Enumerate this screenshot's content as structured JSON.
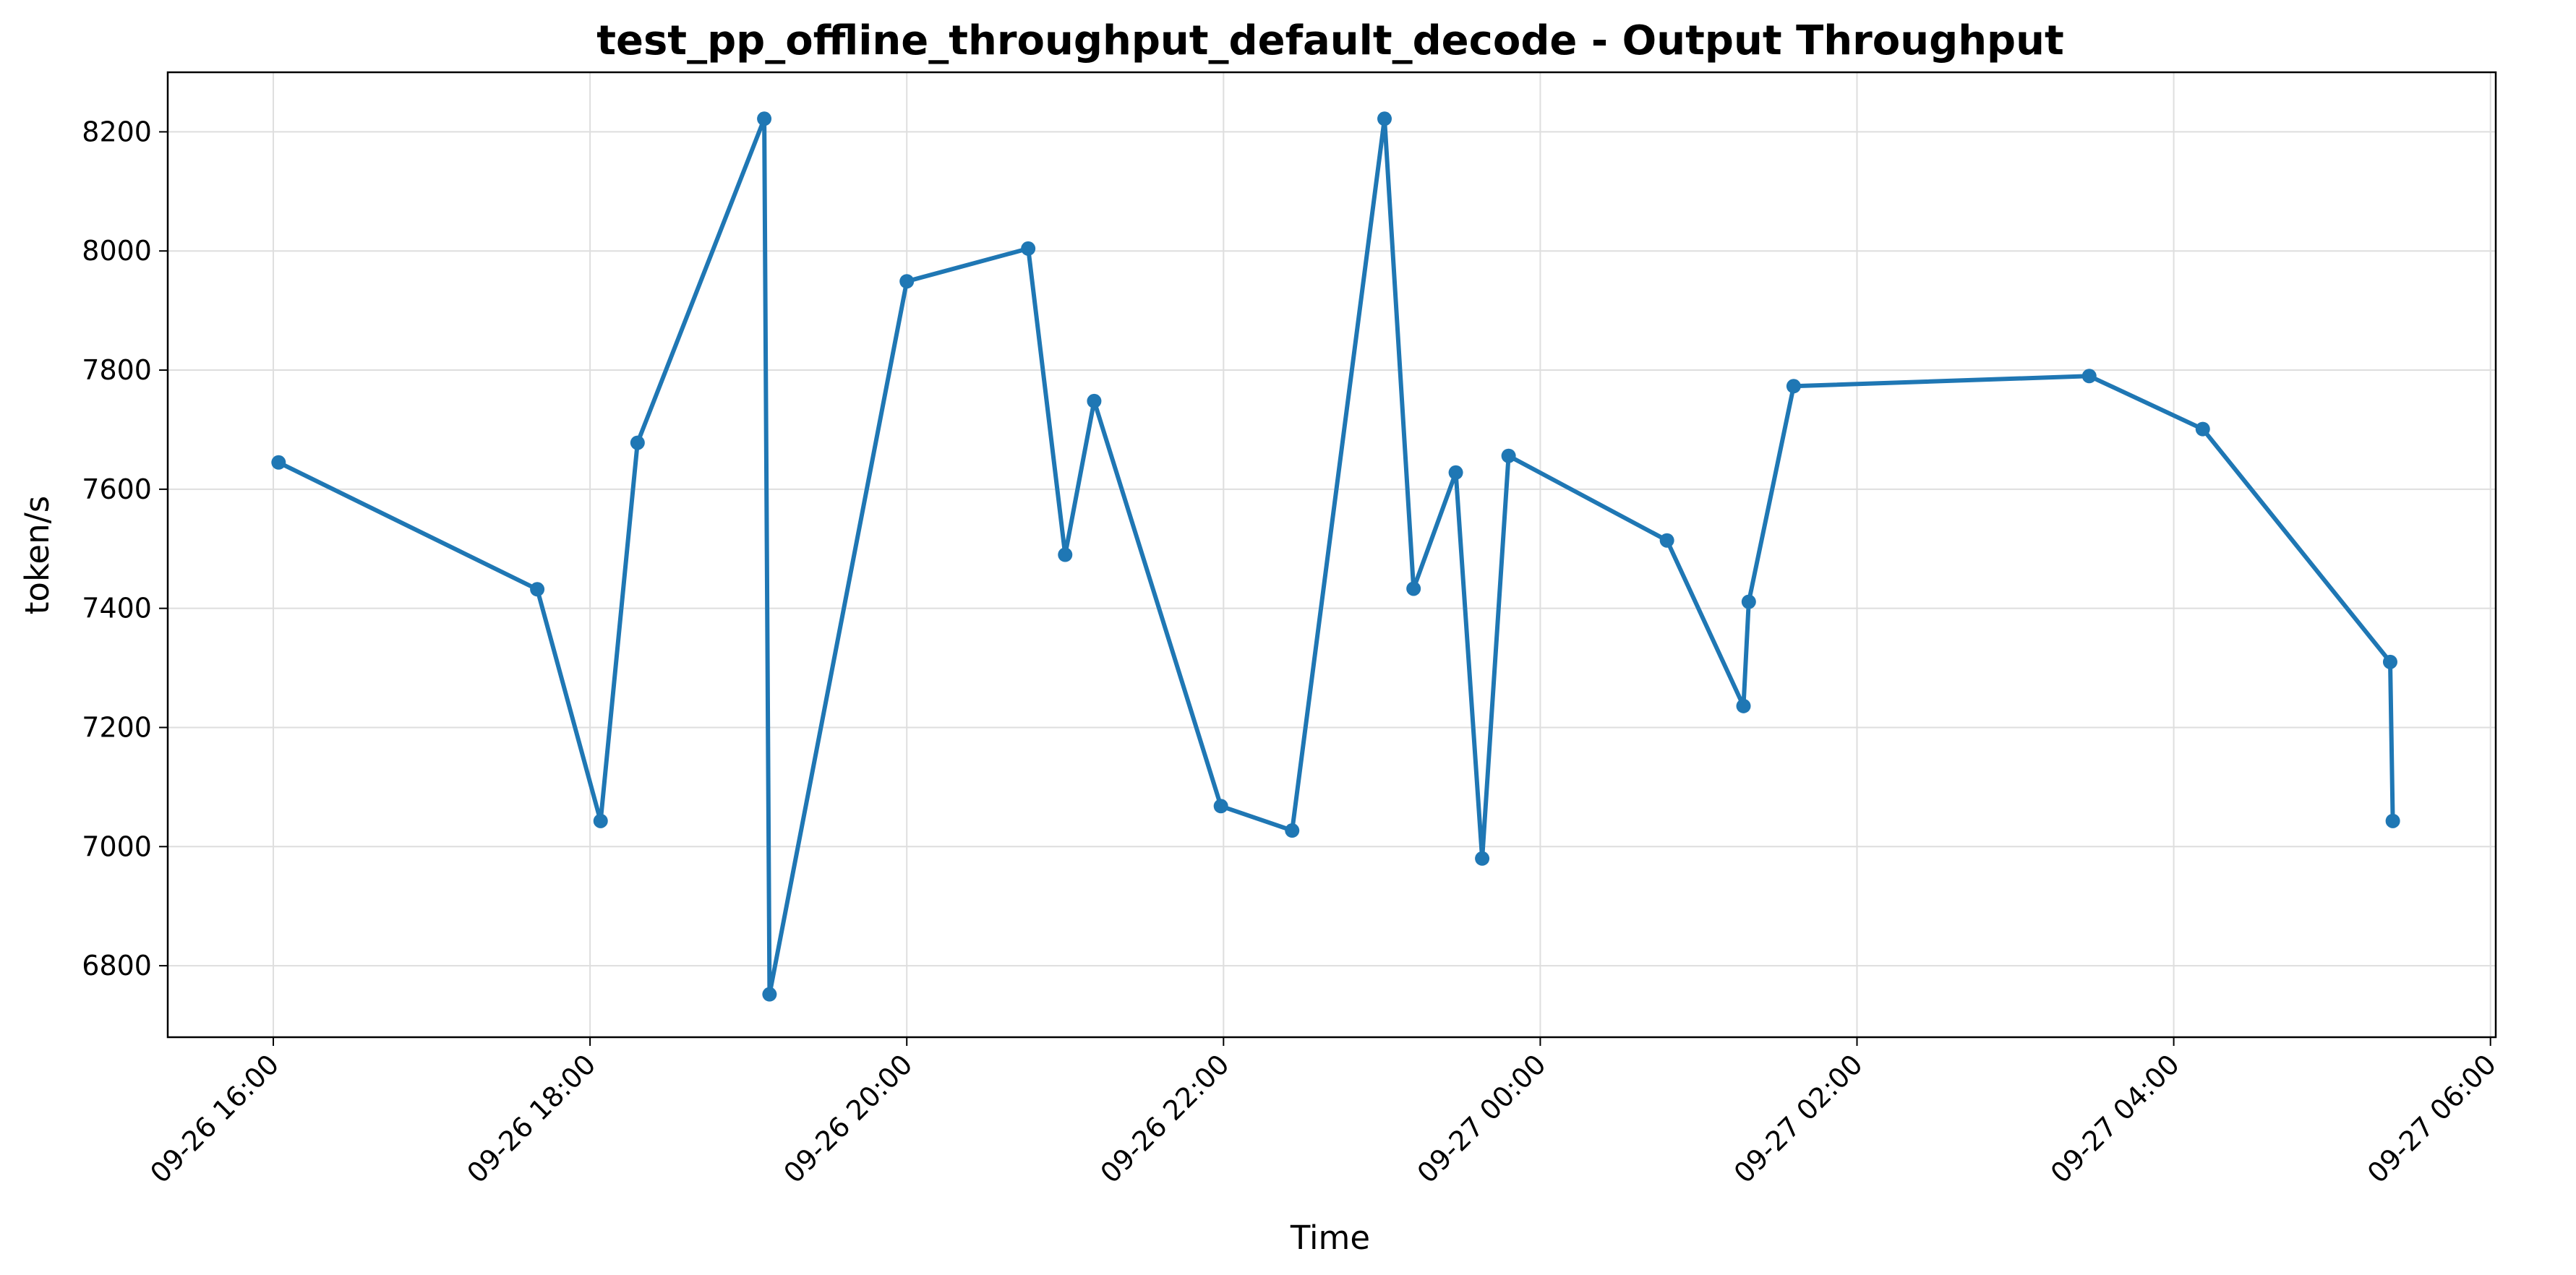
{
  "chart_data": {
    "type": "line",
    "title": "test_pp_offline_throughput_default_decode - Output Throughput",
    "xlabel": "Time",
    "ylabel": "token/s",
    "x_ticks": [
      "09-26 16:00",
      "09-26 18:00",
      "09-26 20:00",
      "09-26 22:00",
      "09-27 00:00",
      "09-27 02:00",
      "09-27 04:00",
      "09-27 06:00"
    ],
    "y_ticks": [
      6800,
      7000,
      7200,
      7400,
      7600,
      7800,
      8000,
      8200
    ],
    "xlim": [
      "2024-09-26 15:20",
      "2024-09-27 06:02"
    ],
    "ylim": [
      6680,
      8300
    ],
    "grid": true,
    "series_color": "#1f77b4",
    "series": [
      {
        "x": [
          "2024-09-26 16:02",
          "2024-09-26 17:40",
          "2024-09-26 18:04",
          "2024-09-26 18:18",
          "2024-09-26 19:06",
          "2024-09-26 19:08",
          "2024-09-26 20:00",
          "2024-09-26 20:46",
          "2024-09-26 21:00",
          "2024-09-26 21:11",
          "2024-09-26 21:59",
          "2024-09-26 22:26",
          "2024-09-26 23:01",
          "2024-09-26 23:12",
          "2024-09-26 23:28",
          "2024-09-26 23:38",
          "2024-09-26 23:48",
          "2024-09-27 00:48",
          "2024-09-27 01:17",
          "2024-09-27 01:19",
          "2024-09-27 01:36",
          "2024-09-27 03:28",
          "2024-09-27 04:11",
          "2024-09-27 05:22",
          "2024-09-27 05:23"
        ],
        "values": [
          7645,
          7432,
          7043,
          7678,
          8222,
          6752,
          7949,
          8004,
          7490,
          7748,
          7068,
          7027,
          8222,
          7433,
          7628,
          6980,
          7656,
          7514,
          7236,
          7411,
          7773,
          7790,
          7701,
          7310,
          7043
        ]
      }
    ]
  }
}
